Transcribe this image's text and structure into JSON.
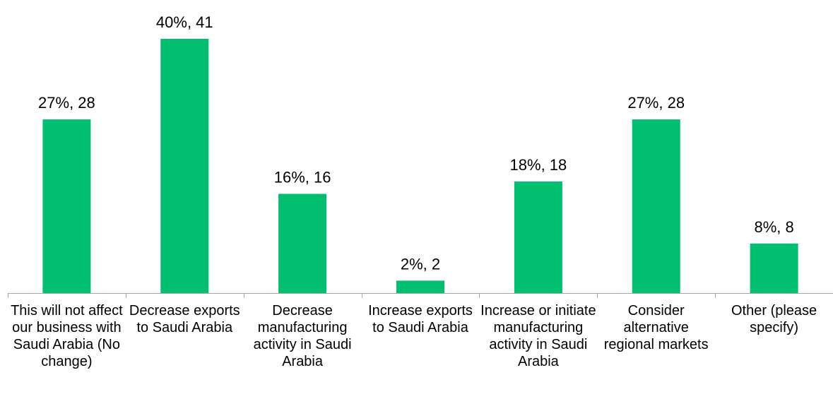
{
  "chart_data": {
    "type": "bar",
    "categories": [
      "This will not affect our business with Saudi Arabia (No change)",
      "Decrease exports to Saudi Arabia",
      "Decrease manufacturing activity in Saudi Arabia",
      "Increase exports to Saudi Arabia",
      "Increase or initiate manufacturing activity in Saudi Arabia",
      "Consider alternative regional markets",
      "Other (please specify)"
    ],
    "values": [
      28,
      41,
      16,
      2,
      18,
      28,
      8
    ],
    "percentages": [
      27,
      40,
      16,
      2,
      18,
      27,
      8
    ],
    "data_labels": [
      "27%, 28",
      "40%, 41",
      "16%, 16",
      "2%, 2",
      "18%, 18",
      "27%, 28",
      "8%, 8"
    ],
    "title": "",
    "xlabel": "",
    "ylabel": "",
    "ylim": [
      0,
      41
    ],
    "grid": false,
    "legend": "none",
    "bar_color": "#00BF6F",
    "axis_color": "#A6A6A6"
  }
}
